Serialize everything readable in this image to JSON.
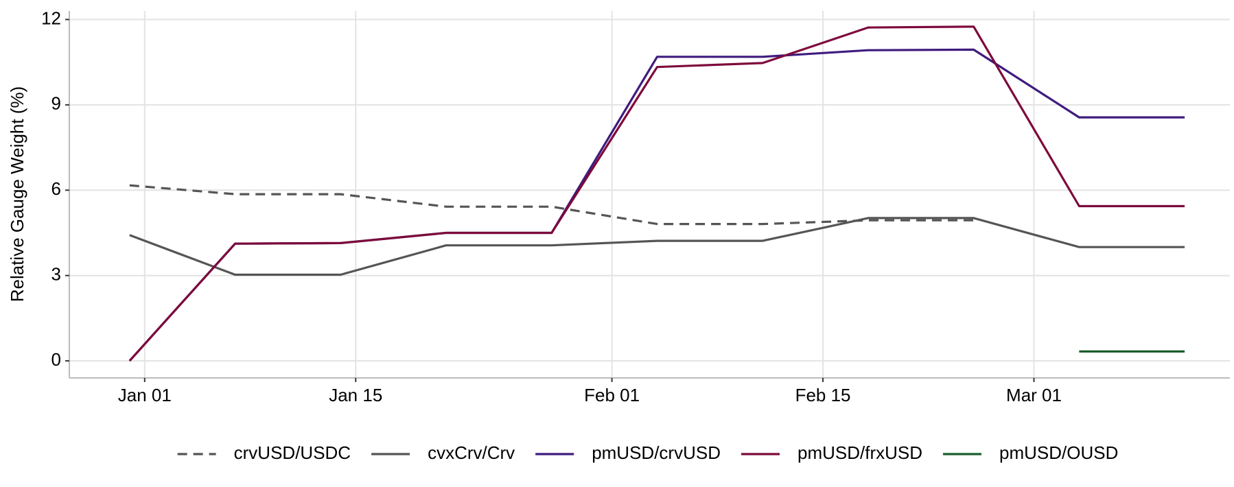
{
  "chart_data": {
    "type": "line",
    "y_label": "Relative Gauge Weight (%)",
    "x": [
      "12-31",
      "01-07",
      "01-14",
      "01-21",
      "01-28",
      "02-04",
      "02-11",
      "02-18",
      "02-25",
      "03-04",
      "03-11"
    ],
    "xlim": [
      "12-27",
      "03-14"
    ],
    "xticks": [
      {
        "value": "01-01",
        "label": "Jan 01"
      },
      {
        "value": "01-15",
        "label": "Jan 15"
      },
      {
        "value": "02-01",
        "label": "Feb 01"
      },
      {
        "value": "02-15",
        "label": "Feb 15"
      },
      {
        "value": "03-01",
        "label": "Mar 01"
      }
    ],
    "ylim": [
      -0.6,
      12.3
    ],
    "yticks": [
      0,
      3,
      6,
      9,
      12
    ],
    "grid": true,
    "legend": "bottom",
    "series": [
      {
        "name": "crvUSD/USDC",
        "color": "#555555",
        "linestyle": "dashed",
        "values": [
          6.17,
          5.86,
          5.86,
          5.42,
          5.42,
          4.81,
          4.81,
          4.94,
          4.94,
          null,
          null
        ]
      },
      {
        "name": "cvxCrv/Crv",
        "color": "#555555",
        "linestyle": "solid",
        "values": [
          4.42,
          3.03,
          3.03,
          4.06,
          4.06,
          4.22,
          4.22,
          5.02,
          5.02,
          4.0,
          4.0
        ]
      },
      {
        "name": "pmUSD/crvUSD",
        "color": "#3f1b7e",
        "linestyle": "solid",
        "values": [
          0,
          4.12,
          4.14,
          4.5,
          4.5,
          10.69,
          10.69,
          10.92,
          10.94,
          8.56,
          8.56
        ]
      },
      {
        "name": "pmUSD/frxUSD",
        "color": "#7d0a3c",
        "linestyle": "solid",
        "values": [
          0,
          4.12,
          4.14,
          4.5,
          4.5,
          10.33,
          10.47,
          11.72,
          11.75,
          5.44,
          5.44
        ]
      },
      {
        "name": "pmUSD/OUSD",
        "color": "#1b5e2c",
        "linestyle": "solid",
        "values": [
          null,
          null,
          null,
          null,
          null,
          null,
          null,
          null,
          null,
          0.33,
          0.33
        ]
      }
    ]
  }
}
